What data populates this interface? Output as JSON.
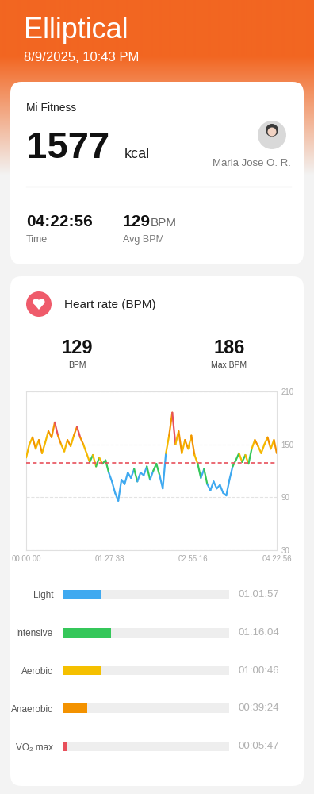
{
  "header": {
    "title": "Elliptical",
    "datetime": "8/9/2025, 10:43 PM"
  },
  "summary": {
    "app": "Mi Fitness",
    "calories": {
      "value": 1577,
      "unit": "kcal"
    },
    "user": "Maria Jose O. R.",
    "time": {
      "value": "04:22:56",
      "label": "Time"
    },
    "avg_bpm": {
      "value": 129,
      "unit": "BPM",
      "label": "Avg BPM"
    }
  },
  "heart_rate": {
    "title": "Heart rate (BPM)",
    "avg": {
      "value": 129,
      "label": "BPM",
      "color": "#e8505b"
    },
    "max": {
      "value": 186,
      "label": "Max BPM"
    }
  },
  "chart_data": [
    {
      "type": "line",
      "x": [
        0,
        200,
        400,
        600,
        800,
        1000,
        1200,
        1400,
        1600,
        1800,
        2000,
        2200,
        2400,
        2600,
        2800,
        3000,
        3200,
        3400,
        3600,
        3800,
        4000,
        4200,
        4400,
        4600,
        4800,
        5000,
        5200,
        5400,
        5600,
        5800,
        6000,
        6200,
        6400,
        6600,
        6800,
        7000,
        7200,
        7400,
        7600,
        7800,
        8000,
        8200,
        8400,
        8600,
        8800,
        9000,
        9200,
        9400,
        9600,
        9800,
        10000,
        10200,
        10400,
        10600,
        10800,
        11000,
        11200,
        11400,
        11600,
        11800,
        12000,
        12200,
        12400,
        12600,
        12800,
        13000,
        13200,
        13400,
        13600,
        13800,
        14000,
        14200,
        14400,
        14600,
        14800,
        15000,
        15200,
        15400,
        15600,
        15776
      ],
      "values": [
        135,
        150,
        158,
        145,
        155,
        140,
        152,
        165,
        158,
        175,
        160,
        150,
        142,
        155,
        148,
        160,
        170,
        158,
        150,
        140,
        130,
        138,
        125,
        135,
        128,
        132,
        118,
        108,
        95,
        86,
        110,
        105,
        118,
        112,
        122,
        108,
        118,
        115,
        125,
        110,
        120,
        128,
        115,
        100,
        140,
        160,
        186,
        150,
        165,
        140,
        155,
        145,
        160,
        138,
        128,
        112,
        122,
        105,
        98,
        108,
        100,
        104,
        95,
        92,
        110,
        125,
        132,
        140,
        130,
        138,
        128,
        145,
        155,
        148,
        140,
        150,
        158,
        145,
        155,
        140
      ],
      "colors": [
        "#f5b800",
        "#f5b800",
        "#f39200",
        "#f5b800",
        "#f39200",
        "#f5b800",
        "#f5b800",
        "#f39200",
        "#f39200",
        "#e8505b",
        "#f39200",
        "#f5b800",
        "#f5b800",
        "#f39200",
        "#f5b800",
        "#f39200",
        "#e8505b",
        "#f39200",
        "#f5b800",
        "#f5b800",
        "#35c75a",
        "#f5b800",
        "#35c75a",
        "#f5b800",
        "#35c75a",
        "#35c75a",
        "#3fa9f0",
        "#3fa9f0",
        "#3fa9f0",
        "#3fa9f0",
        "#3fa9f0",
        "#3fa9f0",
        "#3fa9f0",
        "#3fa9f0",
        "#35c75a",
        "#3fa9f0",
        "#3fa9f0",
        "#3fa9f0",
        "#35c75a",
        "#3fa9f0",
        "#35c75a",
        "#35c75a",
        "#3fa9f0",
        "#3fa9f0",
        "#f5b800",
        "#f39200",
        "#e8505b",
        "#f5b800",
        "#f39200",
        "#f5b800",
        "#f39200",
        "#f5b800",
        "#f39200",
        "#f5b800",
        "#35c75a",
        "#3fa9f0",
        "#35c75a",
        "#3fa9f0",
        "#3fa9f0",
        "#3fa9f0",
        "#3fa9f0",
        "#3fa9f0",
        "#3fa9f0",
        "#3fa9f0",
        "#3fa9f0",
        "#35c75a",
        "#35c75a",
        "#f5b800",
        "#35c75a",
        "#f5b800",
        "#35c75a",
        "#f5b800",
        "#f39200",
        "#f5b800",
        "#f5b800",
        "#f5b800",
        "#f39200",
        "#f5b800",
        "#f39200",
        "#f5b800"
      ],
      "xlim": [
        0,
        15776
      ],
      "xticks": [
        {
          "value": 0,
          "label": "00:00:00"
        },
        {
          "value": 5258,
          "label": "01:27:38"
        },
        {
          "value": 10516,
          "label": "02:55:16"
        },
        {
          "value": 15776,
          "label": "04:22:56"
        }
      ],
      "ylim": [
        30,
        210
      ],
      "yticks": [
        30,
        90,
        150,
        210
      ],
      "grid": true
    },
    {
      "type": "bar",
      "orientation": "horizontal",
      "categories": [
        "Light",
        "Intensive",
        "Aerobic",
        "Anaerobic",
        "VO₂ max"
      ],
      "values": [
        3717,
        4564,
        3646,
        2364,
        347
      ],
      "value_labels": [
        "01:01:57",
        "01:16:04",
        "01:00:46",
        "00:39:24",
        "00:05:47"
      ],
      "colors": [
        "#3fa9f0",
        "#35c75a",
        "#f5c000",
        "#f39200",
        "#e8505b"
      ],
      "xlim": [
        0,
        15776
      ],
      "data_labels": true,
      "tick_labels": "y"
    }
  ]
}
